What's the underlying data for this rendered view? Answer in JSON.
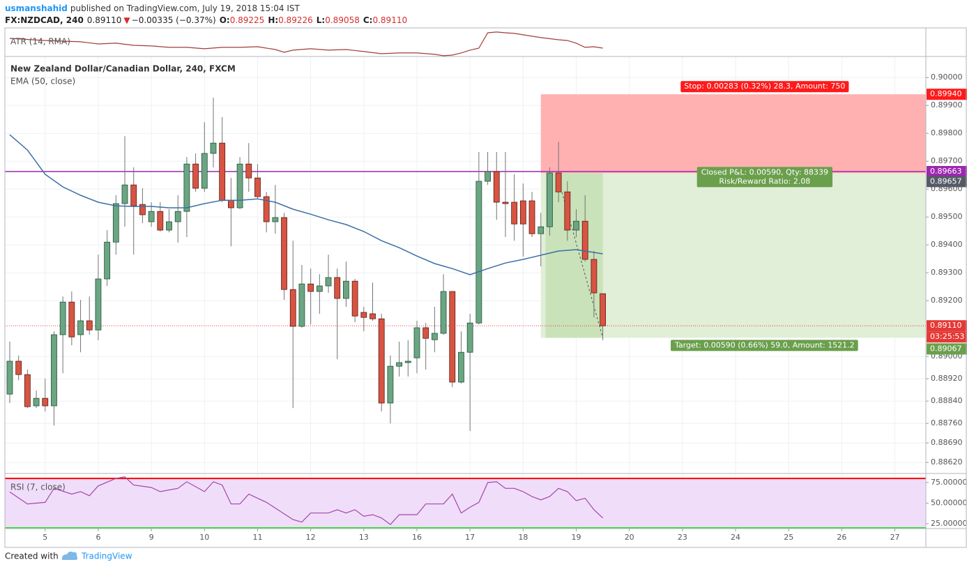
{
  "header": {
    "author": "usmanshahid",
    "published": "published on TradingView.com, July 19, 2018 15:04 IST",
    "symbol": "FX:NZDCAD, 240",
    "last": "0.89110",
    "arrow": "▼",
    "change": "−0.00335 (−0.37%)",
    "ohlc": [
      {
        "label": "O:",
        "value": "0.89225"
      },
      {
        "label": "H:",
        "value": "0.89226"
      },
      {
        "label": "L:",
        "value": "0.89058"
      },
      {
        "label": "C:",
        "value": "0.89110"
      }
    ]
  },
  "footer": {
    "created": "Created with",
    "brand": "TradingView"
  },
  "chart_data": [
    {
      "type": "line",
      "title": "ATR (14, RMA)",
      "color": "#a33a3a",
      "xlim": [
        -0.55,
        103.5
      ],
      "ylim": [
        0.001,
        0.0024
      ],
      "x": [
        0,
        4,
        8,
        10,
        12,
        14,
        16,
        18,
        20,
        22,
        24,
        26,
        28,
        30,
        31,
        32,
        34,
        36,
        38,
        40,
        42,
        44,
        46,
        48,
        49,
        50,
        51,
        52,
        53,
        54,
        55,
        56,
        57,
        58,
        60,
        62,
        63,
        64,
        65,
        66,
        67
      ],
      "values": [
        0.00191,
        0.0018,
        0.00174,
        0.00163,
        0.00167,
        0.00156,
        0.00153,
        0.00146,
        0.00146,
        0.00139,
        0.00146,
        0.00146,
        0.00149,
        0.00135,
        0.00121,
        0.00132,
        0.00139,
        0.00132,
        0.00135,
        0.00125,
        0.00114,
        0.00118,
        0.00118,
        0.00111,
        0.00104,
        0.00107,
        0.00118,
        0.00132,
        0.00142,
        0.00219,
        0.00223,
        0.00219,
        0.00216,
        0.00209,
        0.00195,
        0.00184,
        0.0018,
        0.00167,
        0.00146,
        0.00149,
        0.00142
      ]
    },
    {
      "type": "candlestick",
      "title": "New Zealand Dollar/Canadian Dollar, 240, FXCM",
      "grid": true,
      "up_color": "#6ba583",
      "down_color": "#d75442",
      "up_border": "#225437",
      "down_border": "#5b1a13",
      "wick_color": "#737375",
      "xlim": [
        -0.55,
        103.5
      ],
      "ylim": [
        0.88583,
        0.90073
      ],
      "xticks": [
        {
          "value": 4,
          "label": "5"
        },
        {
          "value": 10,
          "label": "6"
        },
        {
          "value": 16,
          "label": "9"
        },
        {
          "value": 22,
          "label": "10"
        },
        {
          "value": 28,
          "label": "11"
        },
        {
          "value": 34,
          "label": "12"
        },
        {
          "value": 40,
          "label": "13"
        },
        {
          "value": 46,
          "label": "16"
        },
        {
          "value": 52,
          "label": "17"
        },
        {
          "value": 58,
          "label": "18"
        },
        {
          "value": 64,
          "label": "19"
        },
        {
          "value": 70,
          "label": "20"
        },
        {
          "value": 76,
          "label": "23"
        },
        {
          "value": 82,
          "label": "24"
        },
        {
          "value": 88,
          "label": "25"
        },
        {
          "value": 94,
          "label": "26"
        },
        {
          "value": 100,
          "label": "27"
        }
      ],
      "yticks": [
        {
          "value": 0.9,
          "label": "0.90000"
        },
        {
          "value": 0.899,
          "label": "0.89900"
        },
        {
          "value": 0.898,
          "label": "0.89800"
        },
        {
          "value": 0.897,
          "label": "0.89700"
        },
        {
          "value": 0.896,
          "label": "0.89600"
        },
        {
          "value": 0.895,
          "label": "0.89500"
        },
        {
          "value": 0.894,
          "label": "0.89400"
        },
        {
          "value": 0.893,
          "label": "0.89300"
        },
        {
          "value": 0.892,
          "label": "0.89200"
        },
        {
          "value": 0.89,
          "label": "0.89000"
        },
        {
          "value": 0.8892,
          "label": "0.88920"
        },
        {
          "value": 0.8884,
          "label": "0.88840"
        },
        {
          "value": 0.8876,
          "label": "0.88760"
        },
        {
          "value": 0.8869,
          "label": "0.88690"
        },
        {
          "value": 0.8862,
          "label": "0.88620"
        }
      ],
      "open": [
        0.88865,
        0.88983,
        0.88935,
        0.88823,
        0.8885,
        0.88823,
        0.89078,
        0.89195,
        0.89078,
        0.89128,
        0.89095,
        0.89278,
        0.8941,
        0.89548,
        0.89615,
        0.89545,
        0.89483,
        0.8952,
        0.89453,
        0.89483,
        0.8952,
        0.8969,
        0.89603,
        0.89728,
        0.89765,
        0.8956,
        0.89533,
        0.8969,
        0.8964,
        0.89573,
        0.89483,
        0.89498,
        0.8924,
        0.89108,
        0.8926,
        0.89233,
        0.89253,
        0.89283,
        0.89208,
        0.8927,
        0.89158,
        0.89153,
        0.89135,
        0.88833,
        0.88965,
        0.88978,
        0.88995,
        0.89103,
        0.8906,
        0.89083,
        0.89233,
        0.88908,
        0.89015,
        0.8912,
        0.89628,
        0.89663,
        0.89553,
        0.89553,
        0.89558,
        0.89558,
        0.8944,
        0.89465,
        0.89658,
        0.8959,
        0.89453,
        0.89485,
        0.89348,
        0.89225
      ],
      "high": [
        0.89053,
        0.89003,
        0.88953,
        0.88878,
        0.8892,
        0.8909,
        0.89215,
        0.89233,
        0.89203,
        0.89215,
        0.89365,
        0.89453,
        0.89578,
        0.8979,
        0.89678,
        0.89603,
        0.89553,
        0.89553,
        0.89528,
        0.89578,
        0.89715,
        0.89728,
        0.8984,
        0.89928,
        0.89858,
        0.8964,
        0.89715,
        0.89765,
        0.8969,
        0.8959,
        0.89615,
        0.89515,
        0.89415,
        0.89328,
        0.89315,
        0.89295,
        0.89365,
        0.89315,
        0.8934,
        0.89278,
        0.89178,
        0.89265,
        0.89153,
        0.89003,
        0.89053,
        0.89058,
        0.89128,
        0.8912,
        0.89178,
        0.89295,
        0.89233,
        0.8909,
        0.89153,
        0.89733,
        0.89733,
        0.89733,
        0.89733,
        0.89653,
        0.8962,
        0.8959,
        0.89515,
        0.89678,
        0.8977,
        0.89628,
        0.89528,
        0.89578,
        0.89378,
        0.89226
      ],
      "low": [
        0.88833,
        0.88915,
        0.88815,
        0.88815,
        0.88803,
        0.88753,
        0.8894,
        0.8904,
        0.89015,
        0.89078,
        0.89058,
        0.89253,
        0.89365,
        0.89465,
        0.89365,
        0.89478,
        0.89465,
        0.89448,
        0.89445,
        0.89408,
        0.89428,
        0.8959,
        0.8959,
        0.89678,
        0.89553,
        0.89395,
        0.89528,
        0.8959,
        0.89565,
        0.89445,
        0.8944,
        0.89203,
        0.88815,
        0.89103,
        0.89115,
        0.89153,
        0.89228,
        0.8899,
        0.89178,
        0.89123,
        0.8909,
        0.89128,
        0.88803,
        0.8876,
        0.88928,
        0.88928,
        0.8894,
        0.88953,
        0.89015,
        0.89078,
        0.8889,
        0.88903,
        0.88733,
        0.89115,
        0.89615,
        0.8949,
        0.89428,
        0.89415,
        0.89358,
        0.89428,
        0.89323,
        0.89433,
        0.89553,
        0.89415,
        0.89428,
        0.8934,
        0.8914,
        0.89058
      ],
      "close": [
        0.88983,
        0.88935,
        0.8882,
        0.8885,
        0.88823,
        0.89078,
        0.89195,
        0.8907,
        0.89128,
        0.89095,
        0.89278,
        0.8941,
        0.89548,
        0.89615,
        0.8954,
        0.89508,
        0.8952,
        0.89453,
        0.89483,
        0.8952,
        0.8969,
        0.89603,
        0.89728,
        0.89765,
        0.8956,
        0.89533,
        0.8969,
        0.8964,
        0.89573,
        0.89483,
        0.89498,
        0.8924,
        0.89108,
        0.8926,
        0.89233,
        0.89253,
        0.89283,
        0.89208,
        0.8927,
        0.89145,
        0.8914,
        0.89135,
        0.88833,
        0.88965,
        0.88978,
        0.88983,
        0.89103,
        0.89065,
        0.89083,
        0.89233,
        0.88908,
        0.89015,
        0.8912,
        0.89628,
        0.89663,
        0.89553,
        0.89548,
        0.89475,
        0.89475,
        0.8944,
        0.89465,
        0.89658,
        0.8959,
        0.89453,
        0.89485,
        0.89348,
        0.89228,
        0.8911
      ],
      "ema": {
        "name": "EMA (50, close)",
        "color": "#3b6ea5",
        "x": [
          0,
          2,
          4,
          6,
          8,
          10,
          12,
          14,
          16,
          18,
          20,
          22,
          24,
          26,
          28,
          30,
          32,
          34,
          36,
          38,
          40,
          42,
          44,
          46,
          48,
          50,
          52,
          54,
          56,
          58,
          60,
          62,
          64,
          67
        ],
        "values": [
          0.89795,
          0.8974,
          0.89653,
          0.89608,
          0.89578,
          0.89553,
          0.8954,
          0.89538,
          0.89538,
          0.89533,
          0.89533,
          0.89548,
          0.8956,
          0.8956,
          0.89565,
          0.89553,
          0.89528,
          0.8951,
          0.8949,
          0.89473,
          0.89448,
          0.89415,
          0.8939,
          0.8936,
          0.89333,
          0.89315,
          0.89293,
          0.89315,
          0.89335,
          0.89348,
          0.89363,
          0.89378,
          0.89383,
          0.89368
        ]
      },
      "hline": {
        "value": 0.89663,
        "label": "0.89663",
        "color": "#9c27b0"
      },
      "last_price": {
        "value": 0.8911,
        "label": "0.89110",
        "color": "#e53935",
        "countdown": "03:25:53"
      },
      "position": {
        "start": 60,
        "entry_index": 61,
        "exit_index": 67,
        "entry": {
          "value": 0.89657,
          "label": "0.89657"
        },
        "stop": {
          "value": 0.8994,
          "label": "0.89940"
        },
        "target": {
          "value": 0.89067,
          "label": "0.89067"
        },
        "stop_text": "Stop: 0.00283 (0.32%) 28.3, Amount: 750",
        "pnl_text": "Closed P&L: 0.00590, Qty: 88339",
        "rr_text": "Risk/Reward Ratio: 2.08",
        "target_text": "Target: 0.00590 (0.66%) 59.0, Amount: 1521.2",
        "stop_color": "#ff1a1a",
        "target_color": "#6a9f4c",
        "entry_color": "#555b66"
      }
    },
    {
      "type": "line",
      "title": "RSI (7, close)",
      "color": "#a347a6",
      "grid": true,
      "xlim": [
        -0.55,
        103.5
      ],
      "ylim": [
        19.1,
        85.2
      ],
      "yticks": [
        {
          "value": 75,
          "label": "75.00000"
        },
        {
          "value": 50,
          "label": "50.00000"
        },
        {
          "value": 25,
          "label": "25.00000"
        }
      ],
      "bands": [
        {
          "value": 80,
          "color": "#ff0000"
        },
        {
          "value": 20,
          "color": "#33dd33"
        }
      ],
      "band_fill": "#f0ddfa",
      "x": [
        0,
        2,
        4,
        5,
        7,
        8,
        9,
        10,
        12,
        13,
        14,
        16,
        17,
        19,
        20,
        22,
        23,
        24,
        25,
        26,
        27,
        29,
        30,
        32,
        33,
        34,
        36,
        37,
        38,
        39,
        40,
        41,
        42,
        43,
        44,
        46,
        47,
        49,
        50,
        51,
        52,
        53,
        54,
        55,
        56,
        57,
        58,
        59,
        60,
        61,
        62,
        63,
        64,
        65,
        66,
        67
      ],
      "values": [
        63.6,
        49,
        51,
        68,
        61,
        64,
        59,
        71,
        80,
        82,
        72,
        69,
        64,
        68,
        76,
        64,
        76,
        72,
        49,
        49,
        61,
        51,
        44,
        30,
        27,
        38,
        38,
        42,
        38,
        42,
        34,
        36,
        32,
        24,
        36,
        36,
        49,
        49,
        61,
        38,
        45,
        51,
        75,
        76,
        68,
        68,
        64,
        58,
        54,
        58,
        68,
        64,
        53,
        56,
        42,
        32
      ]
    }
  ]
}
